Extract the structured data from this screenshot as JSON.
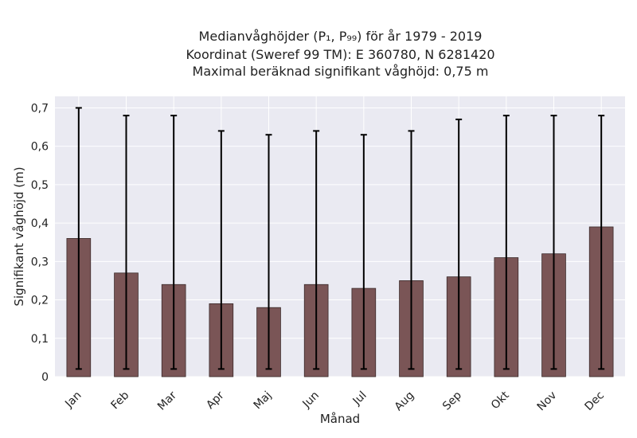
{
  "chart_data": {
    "type": "bar",
    "title_lines": [
      "Medianvåghöjder (P₁, P₉₉) för år 1979 - 2019",
      "Koordinat (Sweref 99 TM): E 360780, N 6281420",
      "Maximal beräknad signifikant våghöjd: 0,75 m"
    ],
    "xlabel": "Månad",
    "ylabel": "Signifikant våghöjd (m)",
    "categories": [
      "Jan",
      "Feb",
      "Mar",
      "Apr",
      "Maj",
      "Jun",
      "Jul",
      "Aug",
      "Sep",
      "Okt",
      "Nov",
      "Dec"
    ],
    "values": [
      0.36,
      0.27,
      0.24,
      0.19,
      0.18,
      0.24,
      0.23,
      0.25,
      0.26,
      0.31,
      0.32,
      0.39
    ],
    "error_low": [
      0.02,
      0.02,
      0.02,
      0.02,
      0.02,
      0.02,
      0.02,
      0.02,
      0.02,
      0.02,
      0.02,
      0.02
    ],
    "error_high": [
      0.7,
      0.68,
      0.68,
      0.64,
      0.63,
      0.64,
      0.63,
      0.64,
      0.67,
      0.68,
      0.68,
      0.68
    ],
    "ylim": [
      0,
      0.73
    ],
    "yticks": [
      0,
      0.1,
      0.2,
      0.3,
      0.4,
      0.5,
      0.6,
      0.7
    ],
    "ytick_labels": [
      "0",
      "0,1",
      "0,2",
      "0,3",
      "0,4",
      "0,5",
      "0,6",
      "0,7"
    ],
    "grid": true,
    "colors": {
      "bar_fill": "#7a5556",
      "bar_edge": "#3a2a2a",
      "error_bar": "#000000",
      "plot_background": "#eaeaf2",
      "grid": "#ffffff"
    }
  }
}
